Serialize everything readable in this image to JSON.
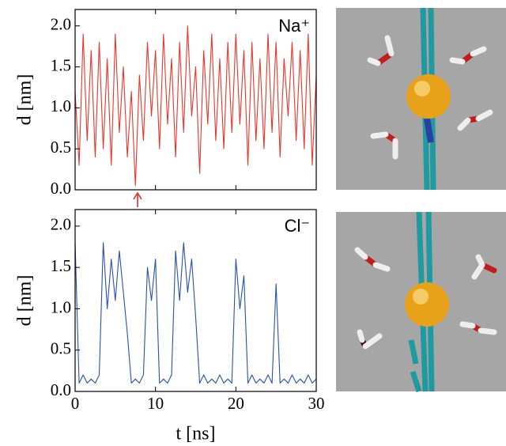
{
  "chart_data": [
    {
      "type": "line",
      "annotation": "Na⁺",
      "ylabel": "d [nm]",
      "xlim": [
        0,
        30
      ],
      "ylim": [
        0,
        2.2
      ],
      "xticks": [
        0,
        10,
        20,
        30
      ],
      "show_xtick_labels": false,
      "yticks": [
        {
          "value": 0,
          "label": "0.0"
        },
        0.5,
        {
          "value": 1,
          "label": "1.0"
        },
        1.5,
        {
          "value": 2,
          "label": "2.0"
        }
      ],
      "series": [
        {
          "name": "Na⁺",
          "color": "#e8362c",
          "x": [
            0,
            0.5,
            1,
            1.5,
            2,
            2.5,
            3,
            3.5,
            4,
            4.5,
            5,
            5.5,
            6,
            6.5,
            7,
            7.5,
            8,
            8.5,
            9,
            9.5,
            10,
            10.5,
            11,
            11.5,
            12,
            12.5,
            13,
            13.5,
            14,
            14.5,
            15,
            15.5,
            16,
            16.5,
            17,
            17.5,
            18,
            18.5,
            19,
            19.5,
            20,
            20.5,
            21,
            21.5,
            22,
            22.5,
            23,
            23.5,
            24,
            24.5,
            25,
            25.5,
            26,
            26.5,
            27,
            27.5,
            28,
            28.5,
            29,
            29.5,
            30
          ],
          "values": [
            1.2,
            0.3,
            1.9,
            0.6,
            1.7,
            0.4,
            1.8,
            0.5,
            1.6,
            0.3,
            1.9,
            0.7,
            1.5,
            0.4,
            1.2,
            0.05,
            1.4,
            0.6,
            1.8,
            0.9,
            1.7,
            0.5,
            1.9,
            0.8,
            1.6,
            0.4,
            1.8,
            0.7,
            2.0,
            0.9,
            1.5,
            0.2,
            1.7,
            0.8,
            1.9,
            0.6,
            1.6,
            0.5,
            1.8,
            0.7,
            1.9,
            0.8,
            1.7,
            0.3,
            1.8,
            0.6,
            1.6,
            0.5,
            1.9,
            0.7,
            1.8,
            0.4,
            1.6,
            0.9,
            1.8,
            0.6,
            1.7,
            0.5,
            1.9,
            0.3,
            1.4
          ]
        }
      ]
    },
    {
      "type": "line",
      "annotation": "Cl⁻",
      "ylabel": "d [nm]",
      "xlabel": "t [ns]",
      "xlim": [
        0,
        30
      ],
      "ylim": [
        0,
        2.2
      ],
      "xticks": [
        0,
        10,
        20,
        30
      ],
      "show_xtick_labels": true,
      "yticks": [
        {
          "value": 0,
          "label": "0.0"
        },
        0.5,
        {
          "value": 1,
          "label": "1.0"
        },
        1.5,
        {
          "value": 2,
          "label": "2.0"
        }
      ],
      "series": [
        {
          "name": "Cl⁻",
          "color": "#2a4fb0",
          "x": [
            0,
            0.5,
            1,
            1.5,
            2,
            2.5,
            3,
            3.5,
            4,
            4.5,
            5,
            5.5,
            6,
            6.5,
            7,
            7.5,
            8,
            8.5,
            9,
            9.5,
            10,
            10.5,
            11,
            11.5,
            12,
            12.5,
            13,
            13.5,
            14,
            14.5,
            15,
            15.5,
            16,
            16.5,
            17,
            17.5,
            18,
            18.5,
            19,
            19.5,
            20,
            20.5,
            21,
            21.5,
            22,
            22.5,
            23,
            23.5,
            24,
            24.5,
            25,
            25.5,
            26,
            26.5,
            27,
            27.5,
            28,
            28.5,
            29,
            29.5,
            30
          ],
          "values": [
            1.8,
            0.1,
            0.2,
            0.1,
            0.15,
            0.1,
            0.2,
            1.8,
            1.0,
            1.6,
            1.1,
            1.7,
            1.2,
            0.7,
            0.1,
            0.15,
            0.1,
            0.2,
            1.5,
            1.1,
            1.6,
            0.1,
            0.15,
            0.1,
            0.2,
            1.7,
            1.1,
            1.8,
            1.2,
            1.6,
            0.9,
            0.1,
            0.2,
            0.1,
            0.15,
            0.1,
            0.2,
            0.1,
            0.15,
            0.1,
            1.6,
            1.0,
            1.4,
            0.1,
            0.2,
            0.1,
            0.15,
            0.1,
            0.2,
            0.1,
            1.3,
            0.1,
            0.15,
            0.1,
            0.2,
            0.1,
            0.15,
            0.1,
            0.2,
            0.1,
            0.15
          ]
        }
      ]
    }
  ]
}
